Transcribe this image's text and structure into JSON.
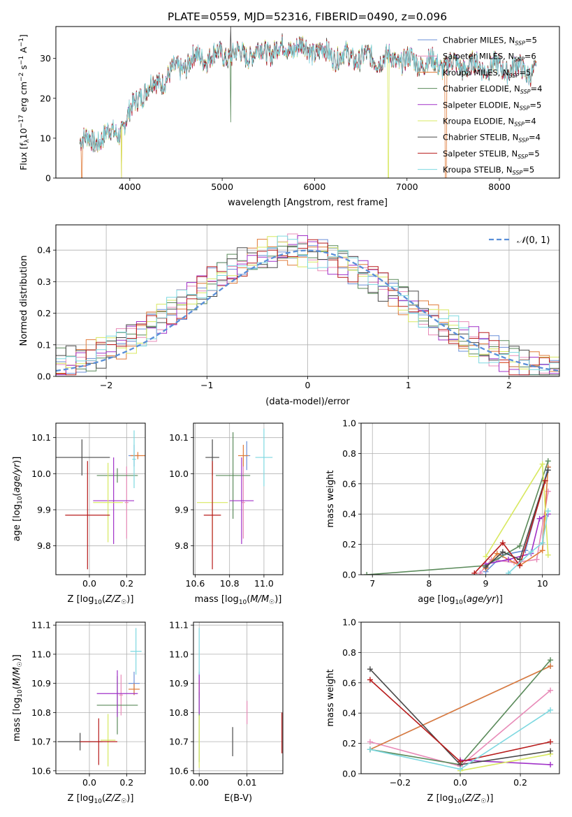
{
  "figure_title": "PLATE=0559, MJD=52316, FIBERID=0490, z=0.096",
  "model_labels": [
    "Chabrier MILES, N_SSP=5",
    "Salpeter MILES, N_SSP=6",
    "Kroupa MILES, N_SSP=5",
    "Chabrier ELODIE, N_SSP=4",
    "Salpeter ELODIE, N_SSP=5",
    "Kroupa ELODIE, N_SSP=4",
    "Chabrier STELIB, N_SSP=4",
    "Salpeter STELIB, N_SSP=5",
    "Kroupa STELIB, N_SSP=5"
  ],
  "model_colors": [
    "#6a8fd8",
    "#e88bb8",
    "#e07b39",
    "#5a8a5a",
    "#a030c8",
    "#d8e860",
    "#4a4a4a",
    "#b81c1c",
    "#7dd8e0"
  ],
  "chart_data": [
    {
      "id": "spectrum",
      "type": "line",
      "title": "PLATE=0559, MJD=52316, FIBERID=0490, z=0.096",
      "xlabel": "wavelength [Angstrom, rest frame]",
      "ylabel": "Flux [f_λ 10^-17 erg cm^-2 s^-1 A^-1]",
      "xlim": [
        3200,
        8650
      ],
      "ylim": [
        0,
        38
      ],
      "xticks": [
        4000,
        5000,
        6000,
        7000,
        8000
      ],
      "yticks": [
        0,
        10,
        20,
        30
      ],
      "legend_position": "top-right",
      "continuum_anchors": [
        [
          3460,
          10
        ],
        [
          3600,
          9
        ],
        [
          3700,
          10.5
        ],
        [
          3900,
          12
        ],
        [
          4000,
          16
        ],
        [
          4100,
          21
        ],
        [
          4300,
          24
        ],
        [
          4500,
          27
        ],
        [
          4700,
          30
        ],
        [
          5000,
          31
        ],
        [
          5200,
          31
        ],
        [
          5500,
          32
        ],
        [
          5800,
          33
        ],
        [
          6000,
          32
        ],
        [
          6300,
          30.5
        ],
        [
          6700,
          30
        ],
        [
          7000,
          29.5
        ],
        [
          7200,
          29
        ],
        [
          7400,
          28.5
        ],
        [
          7800,
          28
        ],
        [
          8200,
          27.5
        ],
        [
          8400,
          26.5
        ]
      ],
      "spikes": [
        [
          5090,
          14
        ],
        [
          6800,
          0
        ],
        [
          3910,
          0
        ],
        [
          7420,
          0
        ],
        [
          3500,
          0
        ]
      ]
    },
    {
      "id": "residuals",
      "type": "line",
      "xlabel": "(data-model)/error",
      "ylabel": "Normed distribution",
      "xlim": [
        -2.5,
        2.5
      ],
      "ylim": [
        0,
        0.48
      ],
      "xticks": [
        -2,
        -1,
        0,
        1,
        2
      ],
      "yticks": [
        0.0,
        0.1,
        0.2,
        0.3,
        0.4
      ],
      "legend": "N(0,1)",
      "legend_position": "top-right",
      "gaussian": {
        "mean": 0,
        "sigma": 1
      },
      "bin_width": 0.1
    },
    {
      "id": "age_vs_Z",
      "type": "scatter",
      "xlabel": "Z [log10(Z/Z☉)]",
      "ylabel": "age [log10(age/yr)]",
      "xlim": [
        -0.18,
        0.3
      ],
      "ylim": [
        9.72,
        10.14
      ],
      "xticks": [
        0.0,
        0.2
      ],
      "yticks": [
        9.8,
        9.9,
        10.0,
        10.1
      ],
      "points": [
        {
          "x": 0.24,
          "y": 10.05,
          "xerr": 0.03,
          "yerr": 0.03
        },
        {
          "x": 0.2,
          "y": 9.92,
          "xerr": 0.01,
          "yerr": 0.1
        },
        {
          "x": 0.26,
          "y": 10.05,
          "xerr": 0.04,
          "yerr": 0.01
        },
        {
          "x": 0.15,
          "y": 9.995,
          "xerr": 0.11,
          "yerr": 0.02
        },
        {
          "x": 0.13,
          "y": 9.925,
          "xerr": 0.11,
          "yerr": 0.12
        },
        {
          "x": 0.1,
          "y": 9.92,
          "xerr": 0.08,
          "yerr": 0.11
        },
        {
          "x": -0.04,
          "y": 10.045,
          "xerr": 0.15,
          "yerr": 0.05
        },
        {
          "x": -0.01,
          "y": 9.885,
          "xerr": 0.12,
          "yerr": 0.15
        },
        {
          "x": 0.24,
          "y": 10.04,
          "xerr": 0.01,
          "yerr": 0.08
        }
      ]
    },
    {
      "id": "age_vs_mass",
      "type": "scatter",
      "xlabel": "mass [log10(M/M☉)]",
      "ylabel": "",
      "xlim": [
        10.59,
        11.11
      ],
      "ylim": [
        9.72,
        10.14
      ],
      "xticks": [
        10.6,
        10.8,
        11.0
      ],
      "yticks": [
        9.8,
        9.9,
        10.0,
        10.1
      ],
      "points": [
        {
          "x": 10.9,
          "y": 10.05,
          "xerr": 0.02,
          "yerr": 0.04
        },
        {
          "x": 10.88,
          "y": 9.92,
          "xerr": 0.01,
          "yerr": 0.1
        },
        {
          "x": 10.88,
          "y": 10.05,
          "xerr": 0.03,
          "yerr": 0.03
        },
        {
          "x": 10.82,
          "y": 9.995,
          "xerr": 0.1,
          "yerr": 0.12
        },
        {
          "x": 10.87,
          "y": 9.925,
          "xerr": 0.07,
          "yerr": 0.12
        },
        {
          "x": 10.7,
          "y": 9.92,
          "xerr": 0.09,
          "yerr": 0.11
        },
        {
          "x": 10.7,
          "y": 10.045,
          "xerr": 0.04,
          "yerr": 0.05
        },
        {
          "x": 10.7,
          "y": 9.885,
          "xerr": 0.05,
          "yerr": 0.15
        },
        {
          "x": 11.0,
          "y": 10.045,
          "xerr": 0.05,
          "yerr": 0.08
        }
      ]
    },
    {
      "id": "weight_vs_age",
      "type": "line",
      "xlabel": "age [log10(age/yr)]",
      "ylabel": "mass weight",
      "xlim": [
        6.8,
        10.3
      ],
      "ylim": [
        0,
        1.0
      ],
      "xticks": [
        7,
        8,
        9,
        10
      ],
      "yticks": [
        0.0,
        0.2,
        0.4,
        0.6,
        0.8,
        1.0
      ],
      "series": [
        {
          "points": [
            [
              9.0,
              0.02
            ],
            [
              9.3,
              0.13
            ],
            [
              9.7,
              0.16
            ],
            [
              10.1,
              0.71
            ]
          ]
        },
        {
          "points": [
            [
              8.9,
              0.01
            ],
            [
              9.1,
              0.1
            ],
            [
              9.5,
              0.08
            ],
            [
              9.9,
              0.1
            ],
            [
              10.1,
              0.55
            ]
          ]
        },
        {
          "points": [
            [
              9.0,
              0.04
            ],
            [
              9.2,
              0.14
            ],
            [
              9.6,
              0.06
            ],
            [
              10.0,
              0.16
            ],
            [
              10.1,
              0.71
            ]
          ]
        },
        {
          "points": [
            [
              6.9,
              0.0
            ],
            [
              9.0,
              0.06
            ],
            [
              9.6,
              0.19
            ],
            [
              10.1,
              0.75
            ]
          ]
        },
        {
          "points": [
            [
              9.0,
              0.07
            ],
            [
              9.4,
              0.1
            ],
            [
              9.8,
              0.14
            ],
            [
              9.95,
              0.37
            ],
            [
              10.1,
              0.4
            ]
          ]
        },
        {
          "points": [
            [
              9.0,
              0.12
            ],
            [
              10.0,
              0.73
            ],
            [
              10.1,
              0.13
            ]
          ]
        },
        {
          "points": [
            [
              9.0,
              0.05
            ],
            [
              9.3,
              0.15
            ],
            [
              9.6,
              0.1
            ],
            [
              10.1,
              0.69
            ]
          ]
        },
        {
          "points": [
            [
              8.8,
              0.01
            ],
            [
              9.3,
              0.21
            ],
            [
              9.6,
              0.06
            ],
            [
              10.05,
              0.62
            ]
          ]
        },
        {
          "points": [
            [
              9.4,
              0.01
            ],
            [
              9.8,
              0.15
            ],
            [
              10.0,
              0.21
            ],
            [
              10.1,
              0.42
            ]
          ]
        }
      ]
    },
    {
      "id": "mass_vs_Z",
      "type": "scatter",
      "xlabel": "Z [log10(Z/Z☉)]",
      "ylabel": "mass [log10(M/M☉)]",
      "xlim": [
        -0.18,
        0.3
      ],
      "ylim": [
        10.59,
        11.11
      ],
      "xticks": [
        0.0,
        0.2
      ],
      "yticks": [
        10.6,
        10.7,
        10.8,
        10.9,
        11.0,
        11.1
      ],
      "points": [
        {
          "x": 0.24,
          "y": 10.9,
          "xerr": 0.03,
          "yerr": 0.04
        },
        {
          "x": 0.17,
          "y": 10.86,
          "xerr": 0.01,
          "yerr": 0.07
        },
        {
          "x": 0.24,
          "y": 10.88,
          "xerr": 0.03,
          "yerr": 0.02
        },
        {
          "x": 0.15,
          "y": 10.825,
          "xerr": 0.11,
          "yerr": 0.1
        },
        {
          "x": 0.15,
          "y": 10.865,
          "xerr": 0.11,
          "yerr": 0.08
        },
        {
          "x": 0.1,
          "y": 10.705,
          "xerr": 0.04,
          "yerr": 0.09
        },
        {
          "x": -0.05,
          "y": 10.7,
          "xerr": 0.12,
          "yerr": 0.03
        },
        {
          "x": 0.05,
          "y": 10.7,
          "xerr": 0.1,
          "yerr": 0.08
        },
        {
          "x": 0.25,
          "y": 11.01,
          "xerr": 0.03,
          "yerr": 0.08
        }
      ]
    },
    {
      "id": "mass_vs_EBV",
      "type": "scatter",
      "xlabel": "E(B-V)",
      "ylabel": "",
      "xlim": [
        -0.0012,
        0.0175
      ],
      "ylim": [
        10.59,
        11.11
      ],
      "xticks": [
        0.0,
        0.01
      ],
      "xticklabels": [
        "0.00",
        "0.01"
      ],
      "yticks": [
        10.6,
        10.7,
        10.8,
        10.9,
        11.0,
        11.1
      ],
      "points": [
        {
          "x": 0.0,
          "y": 10.9,
          "yerr": 0.04
        },
        {
          "x": 0.01,
          "y": 10.8,
          "yerr": 0.04
        },
        {
          "x": 0.0,
          "y": 10.88,
          "yerr": 0.03
        },
        {
          "x": 0.0,
          "y": 10.75,
          "yerr": 0.12
        },
        {
          "x": 0.0,
          "y": 10.865,
          "yerr": 0.07
        },
        {
          "x": 0.0,
          "y": 10.7,
          "yerr": 0.09
        },
        {
          "x": 0.007,
          "y": 10.7,
          "yerr": 0.05
        },
        {
          "x": 0.0173,
          "y": 10.73,
          "yerr": 0.07
        },
        {
          "x": 0.0,
          "y": 11.01,
          "yerr": 0.08
        }
      ]
    },
    {
      "id": "weight_vs_Z",
      "type": "line",
      "xlabel": "Z [log10(Z/Z☉)]",
      "ylabel": "mass weight",
      "xlim": [
        -0.33,
        0.33
      ],
      "ylim": [
        0,
        1.0
      ],
      "xticks": [
        -0.2,
        0.0,
        0.2
      ],
      "xticklabels": [
        "−0.2",
        "0.0",
        "0.2"
      ],
      "yticks": [
        0.0,
        0.2,
        0.4,
        0.6,
        0.8,
        1.0
      ],
      "series": [
        {
          "points": [
            [
              -0.3,
              0.16
            ],
            [
              0.3,
              0.71
            ]
          ]
        },
        {
          "points": [
            [
              -0.3,
              0.21
            ],
            [
              0.0,
              0.05
            ],
            [
              0.3,
              0.55
            ]
          ]
        },
        {
          "points": [
            [
              -0.3,
              0.16
            ],
            [
              0.3,
              0.71
            ]
          ]
        },
        {
          "points": [
            [
              -0.3,
              0.16
            ],
            [
              0.0,
              0.06
            ],
            [
              0.3,
              0.75
            ]
          ]
        },
        {
          "points": [
            [
              0.0,
              0.09
            ],
            [
              0.3,
              0.06
            ]
          ]
        },
        {
          "points": [
            [
              0.0,
              0.02
            ],
            [
              0.3,
              0.13
            ]
          ]
        },
        {
          "points": [
            [
              -0.3,
              0.69
            ],
            [
              0.0,
              0.06
            ],
            [
              0.3,
              0.15
            ]
          ]
        },
        {
          "points": [
            [
              -0.3,
              0.62
            ],
            [
              0.0,
              0.08
            ],
            [
              0.3,
              0.21
            ]
          ]
        },
        {
          "points": [
            [
              -0.3,
              0.16
            ],
            [
              0.0,
              0.03
            ],
            [
              0.3,
              0.42
            ]
          ]
        }
      ]
    }
  ]
}
